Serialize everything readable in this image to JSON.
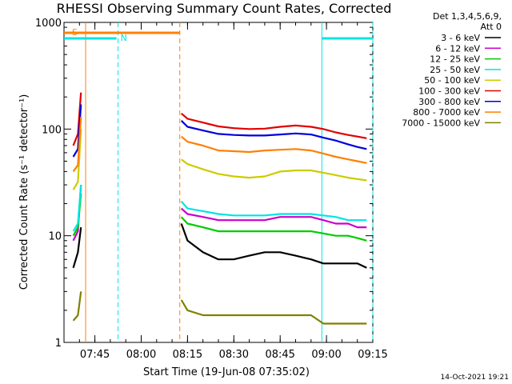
{
  "chart_data": {
    "type": "line",
    "title": "RHESSI Observing Summary Count Rates, Corrected",
    "xlabel": "Start Time (19-Jun-08 07:35:02)",
    "ylabel": "Corrected Count Rate (s⁻¹ detector⁻¹)",
    "x_unit": "minutes after 07:35:02",
    "xlim": [
      0,
      100
    ],
    "ylim": [
      1,
      1000
    ],
    "yscale": "log",
    "x_ticks": [
      {
        "t": 10,
        "label": "07:45"
      },
      {
        "t": 25,
        "label": "08:00"
      },
      {
        "t": 40,
        "label": "08:15"
      },
      {
        "t": 55,
        "label": "08:30"
      },
      {
        "t": 70,
        "label": "08:45"
      },
      {
        "t": 85,
        "label": "09:00"
      },
      {
        "t": 100,
        "label": "09:15"
      }
    ],
    "y_ticks": [
      {
        "v": 1,
        "label": "1"
      },
      {
        "v": 10,
        "label": "10"
      },
      {
        "v": 100,
        "label": "100"
      },
      {
        "v": 1000,
        "label": "1000"
      }
    ],
    "legend_header": [
      "Det 1,3,4,5,6,9,",
      "Att 0"
    ],
    "legend_position": "right",
    "series": [
      {
        "name": "3 - 6 keV",
        "color": "#000000",
        "x": [
          0,
          3,
          4.5,
          5.5,
          37.5,
          38,
          40,
          45,
          50,
          55,
          60,
          65,
          70,
          75,
          80,
          84,
          88,
          92,
          95,
          98
        ],
        "values": [
          null,
          5,
          7,
          12,
          null,
          13,
          9,
          7,
          6,
          6,
          6.5,
          7,
          7,
          6.5,
          6,
          5.5,
          5.5,
          5.5,
          5.5,
          5
        ]
      },
      {
        "name": "6 - 12 keV",
        "color": "#cc00cc",
        "x": [
          0,
          3,
          4.5,
          5.5,
          37.5,
          38,
          40,
          45,
          50,
          55,
          60,
          65,
          70,
          75,
          80,
          84,
          88,
          92,
          95,
          98
        ],
        "values": [
          null,
          9,
          11,
          30,
          null,
          18,
          16,
          15,
          14,
          14,
          14,
          14,
          15,
          15,
          15,
          14,
          13,
          13,
          12,
          12
        ]
      },
      {
        "name": "12 - 25 keV",
        "color": "#00cc00",
        "x": [
          0,
          3,
          4.5,
          5.5,
          37.5,
          38,
          40,
          45,
          50,
          55,
          60,
          65,
          70,
          75,
          80,
          84,
          88,
          92,
          95,
          98
        ],
        "values": [
          null,
          10,
          12,
          25,
          null,
          15,
          13,
          12,
          11,
          11,
          11,
          11,
          11,
          11,
          11,
          10.5,
          10,
          10,
          9.5,
          9
        ]
      },
      {
        "name": "25 - 50 keV",
        "color": "#00e5e5",
        "x": [
          0,
          3,
          4.5,
          5.5,
          37.5,
          38,
          40,
          45,
          50,
          55,
          60,
          65,
          70,
          75,
          80,
          84,
          88,
          92,
          95,
          98
        ],
        "values": [
          null,
          11,
          13,
          30,
          null,
          21,
          18,
          17,
          16,
          15.5,
          15.5,
          15.5,
          16,
          16,
          16,
          15.5,
          15,
          14,
          14,
          14
        ]
      },
      {
        "name": "50 - 100 keV",
        "color": "#cccc00",
        "x": [
          0,
          3,
          4.5,
          5.5,
          37.5,
          38,
          40,
          45,
          50,
          55,
          60,
          65,
          70,
          75,
          80,
          84,
          88,
          92,
          95,
          98
        ],
        "values": [
          null,
          27,
          32,
          100,
          null,
          52,
          47,
          42,
          38,
          36,
          35,
          36,
          40,
          41,
          41,
          39,
          37,
          35,
          34,
          33
        ]
      },
      {
        "name": "100 - 300 keV",
        "color": "#e00000",
        "x": [
          0,
          3,
          4.5,
          5.5,
          37.5,
          38,
          40,
          45,
          50,
          55,
          60,
          65,
          70,
          75,
          80,
          84,
          88,
          92,
          95,
          98
        ],
        "values": [
          null,
          70,
          90,
          220,
          null,
          140,
          125,
          115,
          106,
          102,
          100,
          101,
          105,
          108,
          105,
          100,
          93,
          88,
          85,
          82
        ]
      },
      {
        "name": "300 - 800 keV",
        "color": "#0000dd",
        "x": [
          0,
          3,
          4.5,
          5.5,
          37.5,
          38,
          40,
          45,
          50,
          55,
          60,
          65,
          70,
          75,
          80,
          84,
          88,
          92,
          95,
          98
        ],
        "values": [
          null,
          55,
          65,
          170,
          null,
          120,
          105,
          97,
          90,
          88,
          87,
          87,
          89,
          91,
          89,
          83,
          78,
          72,
          68,
          65
        ]
      },
      {
        "name": "800 - 7000 keV",
        "color": "#ff8000",
        "x": [
          0,
          3,
          4.5,
          5.5,
          37.5,
          38,
          40,
          45,
          50,
          55,
          60,
          65,
          70,
          75,
          80,
          84,
          88,
          92,
          95,
          98
        ],
        "values": [
          null,
          40,
          46,
          130,
          null,
          85,
          76,
          70,
          63,
          62,
          61,
          63,
          64,
          65,
          63,
          59,
          55,
          52,
          50,
          48
        ]
      },
      {
        "name": "7000 - 15000 keV",
        "color": "#808000",
        "x": [
          0,
          3,
          4.5,
          5.5,
          37.5,
          38,
          40,
          45,
          50,
          55,
          60,
          65,
          70,
          75,
          80,
          84,
          88,
          92,
          95,
          98
        ],
        "values": [
          null,
          1.6,
          1.8,
          3,
          null,
          2.5,
          2,
          1.8,
          1.8,
          1.8,
          1.8,
          1.8,
          1.8,
          1.8,
          1.8,
          1.5,
          1.5,
          1.5,
          1.5,
          1.5
        ]
      }
    ],
    "attenuator_flags": [
      {
        "label": "S",
        "start": 0,
        "end": 37.5,
        "level": "upper",
        "color": "#ff8000"
      },
      {
        "label": "N",
        "start": 0,
        "end": 17,
        "level": "lower",
        "color": "#00e5e5"
      },
      {
        "label": "",
        "start": 83.5,
        "end": 100,
        "level": "lower",
        "color": "#00e5e5"
      }
    ],
    "markers": [
      {
        "t": 7,
        "style": "solid",
        "color": "#ff8000"
      },
      {
        "t": 17.5,
        "style": "dashed",
        "color": "#00e5e5"
      },
      {
        "t": 37.5,
        "style": "dashed",
        "color": "#ff8000"
      },
      {
        "t": 83.5,
        "style": "solid",
        "color": "#00e5e5"
      },
      {
        "t": 100,
        "style": "dashed",
        "color": "#00e5e5"
      }
    ],
    "grid": false
  },
  "timestamp": "14-Oct-2021 19:21"
}
